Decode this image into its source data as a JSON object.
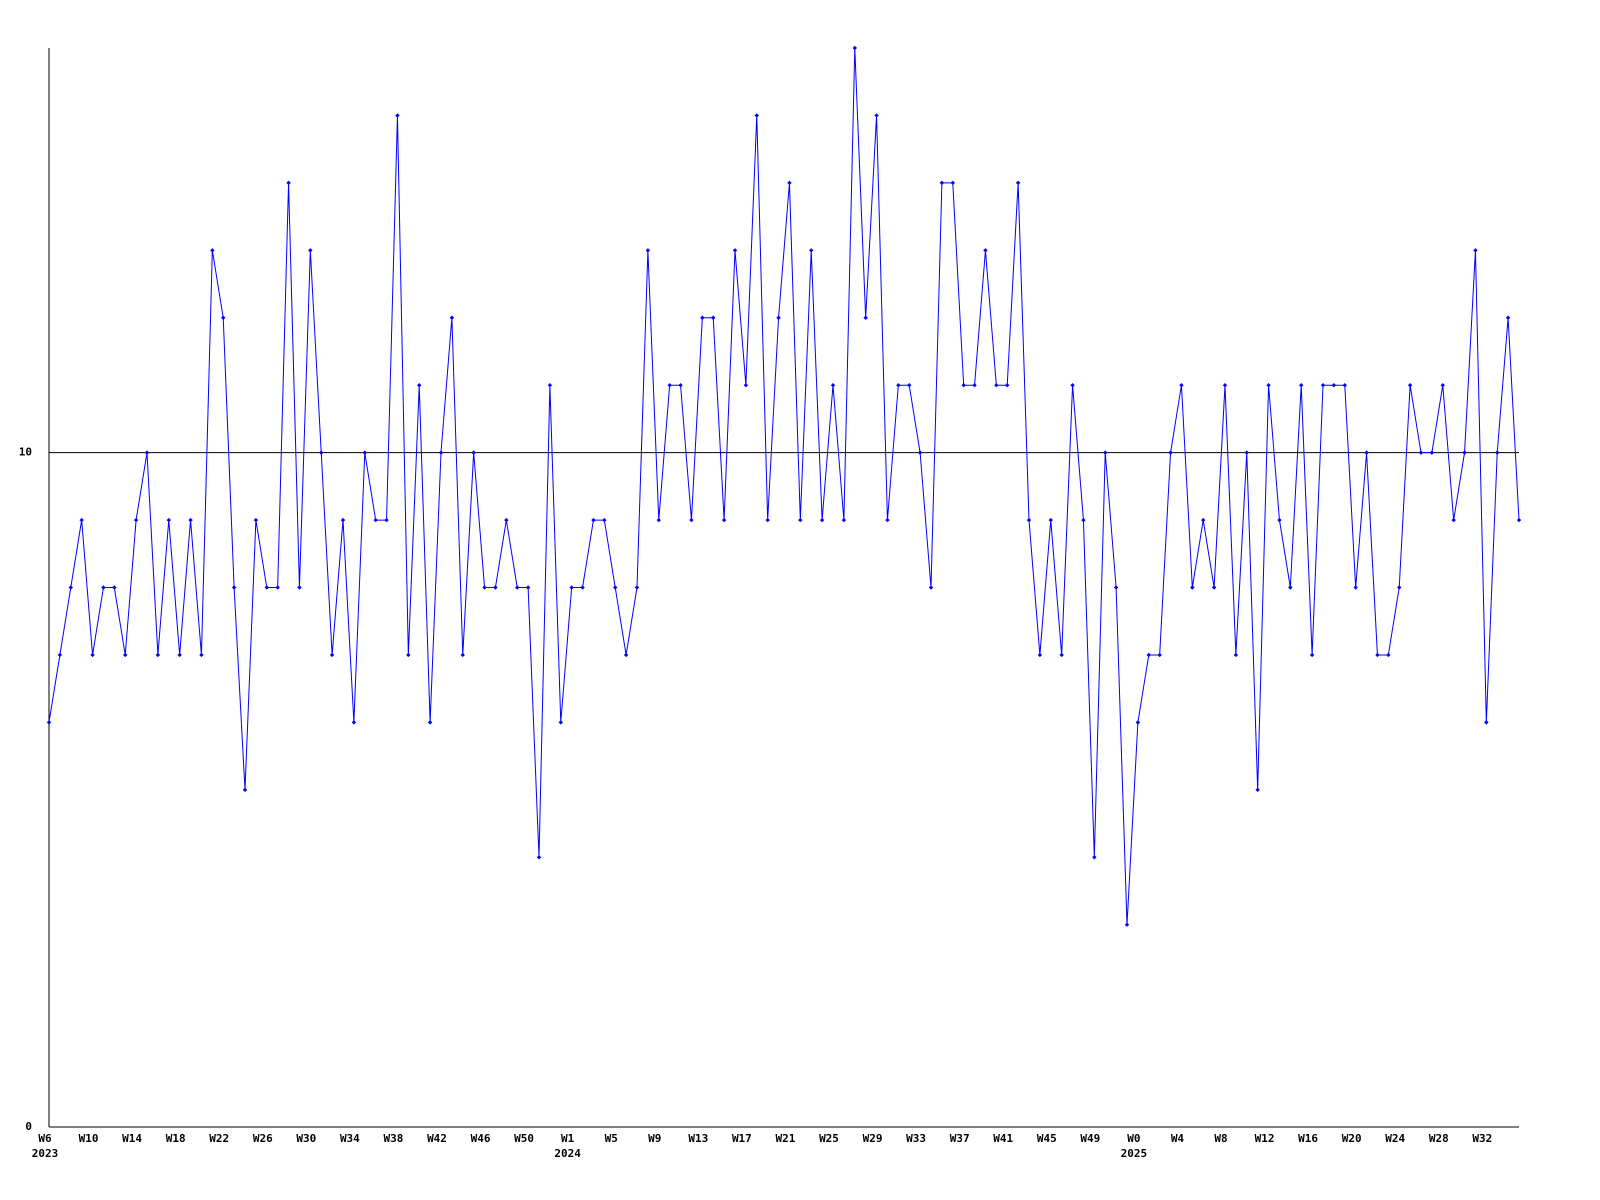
{
  "chart_data": {
    "type": "line",
    "categories": [
      "W6",
      null,
      null,
      null,
      "W10",
      null,
      null,
      null,
      "W14",
      null,
      null,
      null,
      "W18",
      null,
      null,
      null,
      "W22",
      null,
      null,
      null,
      "W26",
      null,
      null,
      null,
      "W30",
      null,
      null,
      null,
      "W34",
      null,
      null,
      null,
      "W38",
      null,
      null,
      null,
      "W42",
      null,
      null,
      null,
      "W46",
      null,
      null,
      null,
      "W50",
      null,
      null,
      null,
      "W1",
      null,
      null,
      null,
      "W5",
      null,
      null,
      null,
      "W9",
      null,
      null,
      null,
      "W13",
      null,
      null,
      null,
      "W17",
      null,
      null,
      null,
      "W21",
      null,
      null,
      null,
      "W25",
      null,
      null,
      null,
      "W29",
      null,
      null,
      null,
      "W33",
      null,
      null,
      null,
      "W37",
      null,
      null,
      null,
      "W41",
      null,
      null,
      null,
      "W45",
      null,
      null,
      null,
      "W49",
      null,
      null,
      null,
      "W0",
      null,
      null,
      null,
      "W4",
      null,
      null,
      null,
      "W8",
      null,
      null,
      null,
      "W12",
      null,
      null,
      null,
      "W16",
      null,
      null,
      null,
      "W20",
      null,
      null,
      null,
      "W24",
      null,
      null,
      null,
      "W28",
      null,
      null,
      null,
      "W32",
      null,
      null,
      null
    ],
    "years": [
      "2023",
      null,
      null,
      null,
      null,
      null,
      null,
      null,
      null,
      null,
      null,
      null,
      null,
      null,
      null,
      null,
      null,
      null,
      null,
      null,
      null,
      null,
      null,
      null,
      null,
      null,
      null,
      null,
      null,
      null,
      null,
      null,
      null,
      null,
      null,
      null,
      null,
      null,
      null,
      null,
      null,
      null,
      null,
      null,
      null,
      null,
      null,
      null,
      "2024",
      null,
      null,
      null,
      null,
      null,
      null,
      null,
      null,
      null,
      null,
      null,
      null,
      null,
      null,
      null,
      null,
      null,
      null,
      null,
      null,
      null,
      null,
      null,
      null,
      null,
      null,
      null,
      null,
      null,
      null,
      null,
      null,
      null,
      null,
      null,
      null,
      null,
      null,
      null,
      null,
      null,
      null,
      null,
      null,
      null,
      null,
      null,
      null,
      null,
      null,
      null,
      "2025",
      null,
      null,
      null,
      null,
      null,
      null,
      null,
      null,
      null,
      null,
      null,
      null,
      null,
      null,
      null,
      null,
      null,
      null,
      null,
      null,
      null,
      null,
      null,
      null,
      null,
      null,
      null,
      null,
      null,
      null,
      null,
      null,
      null,
      null,
      null
    ],
    "series": [
      {
        "color": "#0000ff",
        "values": [
          6,
          7,
          8,
          9,
          7,
          8,
          8,
          7,
          9,
          10,
          7,
          9,
          7,
          9,
          7,
          13,
          12,
          8,
          5,
          9,
          8,
          8,
          14,
          8,
          13,
          10,
          7,
          9,
          6,
          10,
          9,
          9,
          15,
          7,
          11,
          6,
          10,
          12,
          7,
          10,
          8,
          8,
          9,
          8,
          8,
          4,
          11,
          6,
          8,
          8,
          9,
          9,
          8,
          7,
          8,
          13,
          9,
          11,
          11,
          9,
          12,
          12,
          9,
          13,
          11,
          15,
          9,
          12,
          14,
          9,
          13,
          9,
          11,
          9,
          16,
          12,
          15,
          9,
          11,
          11,
          10,
          8,
          14,
          14,
          11,
          11,
          13,
          11,
          11,
          14,
          9,
          7,
          9,
          7,
          11,
          9,
          4,
          10,
          8,
          3,
          6,
          7,
          7,
          10,
          11,
          8,
          9,
          8,
          11,
          7,
          10,
          5,
          11,
          9,
          8,
          11,
          7,
          11,
          11,
          11,
          8,
          10,
          7,
          7,
          8,
          11,
          10,
          10,
          11,
          9,
          10,
          13,
          6,
          10,
          12,
          9
        ]
      }
    ],
    "ylim": [
      0,
      16
    ],
    "yticks": [
      0,
      10
    ],
    "grid": true
  }
}
